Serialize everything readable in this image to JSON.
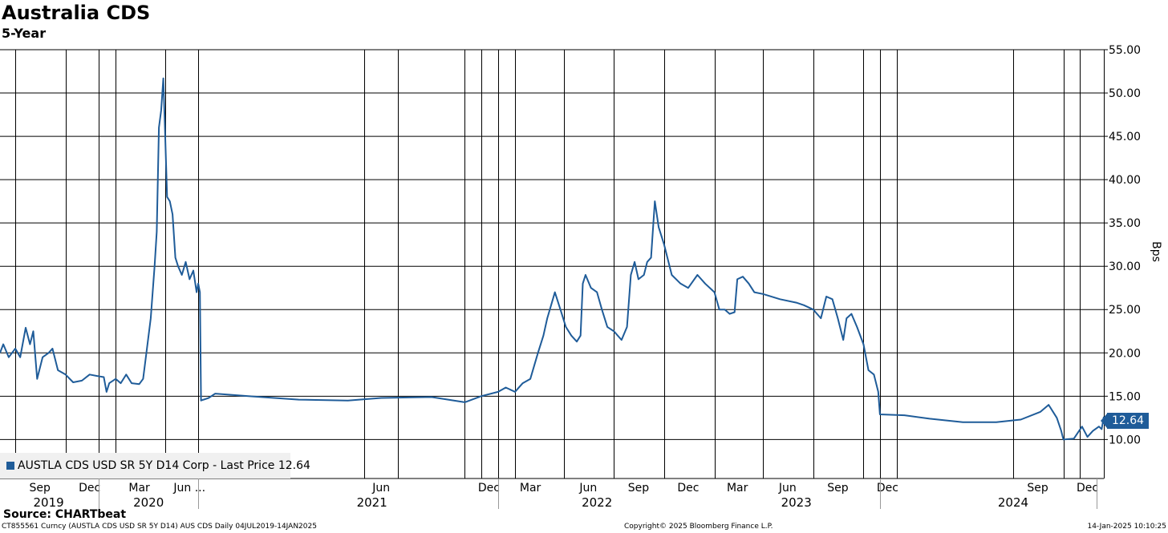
{
  "title": "Australia CDS",
  "subtitle": "5-Year",
  "chart_data": {
    "type": "line",
    "title": "Australia CDS",
    "subtitle": "5-Year",
    "ylabel": "Bps",
    "ylim": [
      5.5,
      55
    ],
    "yticks": [
      "55.00",
      "50.00",
      "45.00",
      "40.00",
      "35.00",
      "30.00",
      "25.00",
      "20.00",
      "15.00",
      "10.00"
    ],
    "ytick_values": [
      55,
      50,
      45,
      40,
      35,
      30,
      25,
      20,
      15,
      10
    ],
    "xlim": [
      "2019-07-04",
      "2025-01-14"
    ],
    "x_grid_dates": [
      "2019-08-01",
      "2019-11-01",
      "2020-01-01",
      "2020-02-01",
      "2020-05-01",
      "2020-07-01",
      "2021-05-01",
      "2021-07-01",
      "2021-11-01",
      "2021-12-01",
      "2022-01-01",
      "2022-02-01",
      "2022-05-01",
      "2022-08-01",
      "2022-11-01",
      "2023-02-01",
      "2023-05-01",
      "2023-08-01",
      "2023-11-01",
      "2023-12-01",
      "2024-01-01",
      "2024-08-01",
      "2024-11-01",
      "2024-12-01"
    ],
    "month_ticks": [
      {
        "label": "Sep",
        "date": "2019-09-15"
      },
      {
        "label": "Dec",
        "date": "2019-12-15"
      },
      {
        "label": "Mar",
        "date": "2020-03-15"
      },
      {
        "label": "Jun ...",
        "date": "2020-06-15"
      },
      {
        "label": "Jun",
        "date": "2021-06-01"
      },
      {
        "label": "Dec",
        "date": "2021-12-15"
      },
      {
        "label": "Mar",
        "date": "2022-03-01"
      },
      {
        "label": "Jun",
        "date": "2022-06-15"
      },
      {
        "label": "Sep",
        "date": "2022-09-15"
      },
      {
        "label": "Dec",
        "date": "2022-12-15"
      },
      {
        "label": "Mar",
        "date": "2023-03-15"
      },
      {
        "label": "Jun",
        "date": "2023-06-15"
      },
      {
        "label": "Sep",
        "date": "2023-09-15"
      },
      {
        "label": "Dec",
        "date": "2023-12-15"
      },
      {
        "label": "Sep",
        "date": "2024-09-15"
      },
      {
        "label": "Dec",
        "date": "2024-12-15"
      }
    ],
    "year_ticks": [
      {
        "label": "2019",
        "date": "2019-10-01"
      },
      {
        "label": "2020",
        "date": "2020-04-01"
      },
      {
        "label": "2021",
        "date": "2021-05-15"
      },
      {
        "label": "2022",
        "date": "2022-07-01"
      },
      {
        "label": "2023",
        "date": "2023-07-01"
      },
      {
        "label": "2024",
        "date": "2024-08-01"
      }
    ],
    "year_separators": [
      "2020-01-01",
      "2020-07-01",
      "2022-01-01",
      "2023-12-01",
      "2025-01-01"
    ],
    "series": [
      {
        "name": "AUSTLA CDS USD SR 5Y D14 Corp - Last Price 12.64",
        "color": "#1f5c99",
        "points": [
          [
            "2019-07-04",
            20.0
          ],
          [
            "2019-07-10",
            21.0
          ],
          [
            "2019-07-20",
            19.5
          ],
          [
            "2019-08-01",
            20.5
          ],
          [
            "2019-08-10",
            19.5
          ],
          [
            "2019-08-20",
            22.9
          ],
          [
            "2019-08-28",
            21.0
          ],
          [
            "2019-09-03",
            22.5
          ],
          [
            "2019-09-10",
            17.0
          ],
          [
            "2019-09-20",
            19.5
          ],
          [
            "2019-10-01",
            20.0
          ],
          [
            "2019-10-08",
            20.5
          ],
          [
            "2019-10-18",
            18.0
          ],
          [
            "2019-11-01",
            17.5
          ],
          [
            "2019-11-15",
            16.6
          ],
          [
            "2019-12-01",
            16.8
          ],
          [
            "2019-12-15",
            17.5
          ],
          [
            "2020-01-01",
            17.3
          ],
          [
            "2020-01-10",
            17.2
          ],
          [
            "2020-01-15",
            15.5
          ],
          [
            "2020-01-20",
            16.5
          ],
          [
            "2020-02-01",
            17.0
          ],
          [
            "2020-02-10",
            16.5
          ],
          [
            "2020-02-20",
            17.5
          ],
          [
            "2020-03-01",
            16.5
          ],
          [
            "2020-03-15",
            16.4
          ],
          [
            "2020-03-22",
            17.0
          ],
          [
            "2020-03-28",
            20.0
          ],
          [
            "2020-04-05",
            24.0
          ],
          [
            "2020-04-12",
            30.0
          ],
          [
            "2020-04-16",
            34.0
          ],
          [
            "2020-04-20",
            46.0
          ],
          [
            "2020-04-24",
            48.0
          ],
          [
            "2020-04-28",
            51.7
          ],
          [
            "2020-05-01",
            46.0
          ],
          [
            "2020-05-05",
            38.0
          ],
          [
            "2020-05-10",
            37.5
          ],
          [
            "2020-05-15",
            36.0
          ],
          [
            "2020-05-20",
            31.0
          ],
          [
            "2020-05-25",
            30.0
          ],
          [
            "2020-06-01",
            29.0
          ],
          [
            "2020-06-08",
            30.5
          ],
          [
            "2020-06-15",
            28.5
          ],
          [
            "2020-06-22",
            29.5
          ],
          [
            "2020-06-28",
            27.0
          ],
          [
            "2020-07-01",
            28.0
          ],
          [
            "2020-07-04",
            27.0
          ],
          [
            "2020-07-06",
            14.5
          ],
          [
            "2020-07-20",
            14.8
          ],
          [
            "2020-08-01",
            15.3
          ],
          [
            "2020-10-01",
            15.0
          ],
          [
            "2021-01-01",
            14.6
          ],
          [
            "2021-04-01",
            14.5
          ],
          [
            "2021-06-01",
            14.8
          ],
          [
            "2021-09-01",
            14.9
          ],
          [
            "2021-11-01",
            14.3
          ],
          [
            "2021-12-01",
            15.0
          ],
          [
            "2022-01-01",
            15.5
          ],
          [
            "2022-01-15",
            16.0
          ],
          [
            "2022-02-01",
            15.5
          ],
          [
            "2022-02-15",
            16.5
          ],
          [
            "2022-03-01",
            17.0
          ],
          [
            "2022-03-15",
            20.0
          ],
          [
            "2022-03-25",
            22.0
          ],
          [
            "2022-04-01",
            24.0
          ],
          [
            "2022-04-08",
            25.5
          ],
          [
            "2022-04-15",
            27.0
          ],
          [
            "2022-04-25",
            25.0
          ],
          [
            "2022-05-05",
            23.0
          ],
          [
            "2022-05-15",
            22.0
          ],
          [
            "2022-05-25",
            21.3
          ],
          [
            "2022-06-01",
            22.0
          ],
          [
            "2022-06-05",
            28.0
          ],
          [
            "2022-06-10",
            29.0
          ],
          [
            "2022-06-20",
            27.5
          ],
          [
            "2022-07-01",
            27.0
          ],
          [
            "2022-07-10",
            25.0
          ],
          [
            "2022-07-20",
            23.0
          ],
          [
            "2022-08-01",
            22.5
          ],
          [
            "2022-08-15",
            21.5
          ],
          [
            "2022-08-25",
            23.0
          ],
          [
            "2022-09-01",
            29.0
          ],
          [
            "2022-09-08",
            30.5
          ],
          [
            "2022-09-15",
            28.5
          ],
          [
            "2022-09-25",
            29.0
          ],
          [
            "2022-10-01",
            30.5
          ],
          [
            "2022-10-08",
            31.0
          ],
          [
            "2022-10-15",
            37.5
          ],
          [
            "2022-10-22",
            34.5
          ],
          [
            "2022-11-01",
            32.5
          ],
          [
            "2022-11-15",
            29.0
          ],
          [
            "2022-12-01",
            28.0
          ],
          [
            "2022-12-15",
            27.5
          ],
          [
            "2023-01-01",
            29.0
          ],
          [
            "2023-01-15",
            28.0
          ],
          [
            "2023-02-01",
            27.0
          ],
          [
            "2023-02-10",
            25.0
          ],
          [
            "2023-02-20",
            25.0
          ],
          [
            "2023-03-01",
            24.5
          ],
          [
            "2023-03-10",
            24.7
          ],
          [
            "2023-03-15",
            28.5
          ],
          [
            "2023-03-25",
            28.8
          ],
          [
            "2023-04-05",
            28.0
          ],
          [
            "2023-04-15",
            27.0
          ],
          [
            "2023-05-01",
            26.8
          ],
          [
            "2023-06-01",
            26.2
          ],
          [
            "2023-07-01",
            25.8
          ],
          [
            "2023-07-15",
            25.5
          ],
          [
            "2023-08-01",
            25.0
          ],
          [
            "2023-08-15",
            24.0
          ],
          [
            "2023-08-25",
            26.5
          ],
          [
            "2023-09-05",
            26.2
          ],
          [
            "2023-09-15",
            24.0
          ],
          [
            "2023-09-25",
            21.5
          ],
          [
            "2023-10-01",
            24.0
          ],
          [
            "2023-10-10",
            24.5
          ],
          [
            "2023-10-20",
            23.0
          ],
          [
            "2023-11-01",
            21.0
          ],
          [
            "2023-11-10",
            18.0
          ],
          [
            "2023-11-20",
            17.5
          ],
          [
            "2023-11-28",
            15.5
          ],
          [
            "2023-12-01",
            12.9
          ],
          [
            "2024-01-15",
            12.8
          ],
          [
            "2024-03-01",
            12.4
          ],
          [
            "2024-05-01",
            12.0
          ],
          [
            "2024-07-01",
            12.0
          ],
          [
            "2024-08-15",
            12.3
          ],
          [
            "2024-09-20",
            13.2
          ],
          [
            "2024-10-05",
            14.0
          ],
          [
            "2024-10-20",
            12.5
          ],
          [
            "2024-10-28",
            11.0
          ],
          [
            "2024-11-01",
            10.0
          ],
          [
            "2024-11-20",
            10.1
          ],
          [
            "2024-12-05",
            11.5
          ],
          [
            "2024-12-15",
            10.3
          ],
          [
            "2024-12-25",
            11.0
          ],
          [
            "2025-01-05",
            11.5
          ],
          [
            "2025-01-10",
            11.2
          ],
          [
            "2025-01-14",
            12.64
          ]
        ]
      }
    ],
    "last_value_label": "12.64",
    "grid": true,
    "legend": "bottom-left"
  },
  "legend": {
    "label": "AUSTLA CDS USD SR 5Y D14 Corp - Last Price 12.64"
  },
  "source": "Source: CHARTbeat",
  "footer": {
    "left": "CT855561 Curncy (AUSTLA CDS USD SR 5Y D14) AUS CDS  Daily 04JUL2019-14JAN2025",
    "middle": "Copyright© 2025 Bloomberg Finance L.P.",
    "right": "14-Jan-2025 10:10:25"
  },
  "colors": {
    "line": "#1f5c99",
    "grid": "#000000"
  }
}
